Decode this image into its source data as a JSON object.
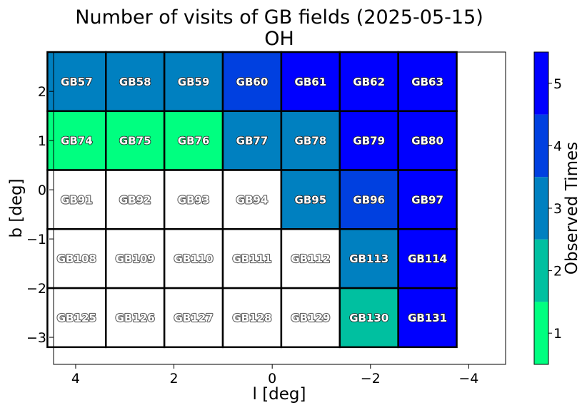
{
  "chart_data": {
    "type": "heatmap",
    "title": "Number of visits of GB fields (2025-05-15)",
    "subtitle": "OH",
    "xlabel": "l [deg]",
    "ylabel": "b [deg]",
    "colorbar_label": "Observed Times",
    "xlim": [
      4.45,
      -4.75
    ],
    "ylim": [
      -3.55,
      2.8
    ],
    "xticks": [
      4,
      2,
      0,
      -2,
      -4
    ],
    "xtick_labels": [
      "4",
      "2",
      "0",
      "−2",
      "−4"
    ],
    "yticks": [
      2,
      1,
      0,
      -1,
      -2,
      -3
    ],
    "ytick_labels": [
      "2",
      "1",
      "0",
      "−1",
      "−2",
      "−3"
    ],
    "colorbar": {
      "min": 0.5,
      "max": 5.5,
      "levels": [
        1,
        2,
        3,
        4,
        5
      ],
      "tick_labels": [
        "1",
        "2",
        "3",
        "4",
        "5"
      ],
      "colors": [
        "#00ff80",
        "#00c0a0",
        "#0080c0",
        "#0040e0",
        "#0000ff"
      ]
    },
    "no_data_color": "#ffffff",
    "grid": false,
    "columns_l": [
      3.98,
      2.79,
      1.6,
      0.41,
      -0.78,
      -1.97,
      -3.16
    ],
    "rows_b": [
      2.2,
      1.0,
      -0.2,
      -1.4,
      -2.6
    ],
    "cell_width_deg": 1.19,
    "cell_height_deg": 1.2,
    "fields": [
      {
        "name": "GB57",
        "visits": 3
      },
      {
        "name": "GB58",
        "visits": 3
      },
      {
        "name": "GB59",
        "visits": 3
      },
      {
        "name": "GB60",
        "visits": 4
      },
      {
        "name": "GB61",
        "visits": 5
      },
      {
        "name": "GB62",
        "visits": 5
      },
      {
        "name": "GB63",
        "visits": 5
      },
      {
        "name": "GB74",
        "visits": 1
      },
      {
        "name": "GB75",
        "visits": 1
      },
      {
        "name": "GB76",
        "visits": 1
      },
      {
        "name": "GB77",
        "visits": 3
      },
      {
        "name": "GB78",
        "visits": 3
      },
      {
        "name": "GB79",
        "visits": 5
      },
      {
        "name": "GB80",
        "visits": 5
      },
      {
        "name": "GB91",
        "visits": 0
      },
      {
        "name": "GB92",
        "visits": 0
      },
      {
        "name": "GB93",
        "visits": 0
      },
      {
        "name": "GB94",
        "visits": 0
      },
      {
        "name": "GB95",
        "visits": 3
      },
      {
        "name": "GB96",
        "visits": 4
      },
      {
        "name": "GB97",
        "visits": 5
      },
      {
        "name": "GB108",
        "visits": 0
      },
      {
        "name": "GB109",
        "visits": 0
      },
      {
        "name": "GB110",
        "visits": 0
      },
      {
        "name": "GB111",
        "visits": 0
      },
      {
        "name": "GB112",
        "visits": 0
      },
      {
        "name": "GB113",
        "visits": 3
      },
      {
        "name": "GB114",
        "visits": 5
      },
      {
        "name": "GB125",
        "visits": 0
      },
      {
        "name": "GB126",
        "visits": 0
      },
      {
        "name": "GB127",
        "visits": 0
      },
      {
        "name": "GB128",
        "visits": 0
      },
      {
        "name": "GB129",
        "visits": 0
      },
      {
        "name": "GB130",
        "visits": 2
      },
      {
        "name": "GB131",
        "visits": 5
      }
    ]
  }
}
